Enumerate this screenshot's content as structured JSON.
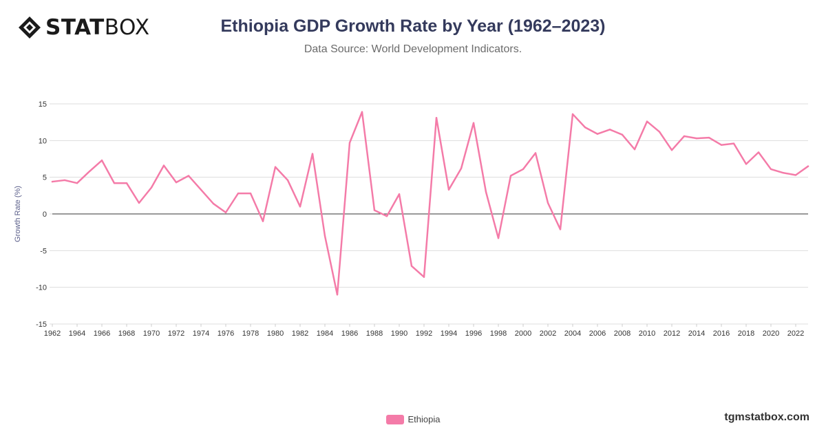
{
  "brand": {
    "logo_bold": "STAT",
    "logo_light": "BOX",
    "watermark": "tgmstatbox.com"
  },
  "colors": {
    "series": "#f47ba8",
    "grid": "#dddddd",
    "zero_line": "#333333",
    "title": "#343a5c"
  },
  "chart_data": {
    "type": "line",
    "title": "Ethiopia GDP Growth Rate by Year (1962–2023)",
    "subtitle": "Data Source: World Development Indicators.",
    "ylabel": "Growth Rate (%)",
    "xlabel": "",
    "ylim": [
      -15,
      15
    ],
    "yticks": [
      15,
      10,
      5,
      0,
      -5,
      -10,
      -15
    ],
    "xticks": [
      1962,
      1964,
      1966,
      1968,
      1970,
      1972,
      1974,
      1976,
      1978,
      1980,
      1982,
      1984,
      1986,
      1988,
      1990,
      1992,
      1994,
      1996,
      1998,
      2000,
      2002,
      2004,
      2006,
      2008,
      2010,
      2012,
      2014,
      2016,
      2018,
      2020,
      2022
    ],
    "x": [
      1962,
      1963,
      1964,
      1965,
      1966,
      1967,
      1968,
      1969,
      1970,
      1971,
      1972,
      1973,
      1974,
      1975,
      1976,
      1977,
      1978,
      1979,
      1980,
      1981,
      1982,
      1983,
      1984,
      1985,
      1986,
      1987,
      1988,
      1989,
      1990,
      1991,
      1992,
      1993,
      1994,
      1995,
      1996,
      1997,
      1998,
      1999,
      2000,
      2001,
      2002,
      2003,
      2004,
      2005,
      2006,
      2007,
      2008,
      2009,
      2010,
      2011,
      2012,
      2013,
      2014,
      2015,
      2016,
      2017,
      2018,
      2019,
      2020,
      2021,
      2022,
      2023
    ],
    "series": [
      {
        "name": "Ethiopia",
        "values": [
          4.4,
          4.6,
          4.2,
          5.8,
          7.3,
          4.2,
          4.2,
          1.5,
          3.6,
          6.6,
          4.3,
          5.2,
          3.3,
          1.4,
          0.2,
          2.8,
          2.8,
          -1.0,
          6.4,
          4.6,
          1.0,
          8.2,
          -3.0,
          -11.0,
          9.7,
          13.9,
          0.5,
          -0.3,
          2.7,
          -7.1,
          -8.6,
          13.1,
          3.3,
          6.2,
          12.4,
          3.0,
          -3.3,
          5.2,
          6.1,
          8.3,
          1.5,
          -2.1,
          13.6,
          11.8,
          10.9,
          11.5,
          10.8,
          8.8,
          12.6,
          11.2,
          8.7,
          10.6,
          10.3,
          10.4,
          9.4,
          9.6,
          6.8,
          8.4,
          6.1,
          5.6,
          5.3,
          6.5
        ]
      }
    ],
    "legend": "bottom-center"
  }
}
